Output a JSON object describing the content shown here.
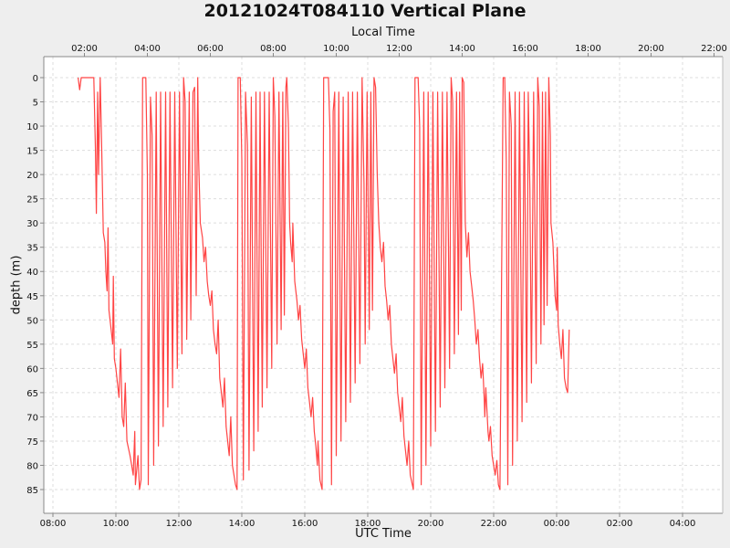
{
  "chart_data": {
    "type": "line",
    "title": "20121024T084110 Vertical Plane",
    "xlabel": "UTC Time",
    "x2label": "Local Time",
    "ylabel": "depth (m)",
    "y_inverted": true,
    "ylim": [
      -4,
      90
    ],
    "grid": true,
    "legend": null,
    "x_ticks_utc": [
      "08:00",
      "10:00",
      "12:00",
      "14:00",
      "16:00",
      "18:00",
      "20:00",
      "22:00",
      "00:00",
      "02:00",
      "04:00"
    ],
    "x_ticks_local": [
      "02:00",
      "04:00",
      "06:00",
      "08:00",
      "10:00",
      "12:00",
      "14:00",
      "16:00",
      "18:00",
      "20:00",
      "22:00"
    ],
    "y_ticks": [
      0,
      5,
      10,
      15,
      20,
      25,
      30,
      35,
      40,
      45,
      50,
      55,
      60,
      65,
      70,
      75,
      80,
      85
    ],
    "x_units": "hours since 08:00 UTC",
    "series": [
      {
        "name": "depth",
        "color": "#ff4444",
        "points": [
          [
            0.8,
            0
          ],
          [
            0.85,
            2.5
          ],
          [
            0.9,
            0
          ],
          [
            1.3,
            0
          ],
          [
            1.35,
            15
          ],
          [
            1.38,
            28
          ],
          [
            1.42,
            3
          ],
          [
            1.45,
            20
          ],
          [
            1.5,
            0
          ],
          [
            1.55,
            15
          ],
          [
            1.6,
            32
          ],
          [
            1.65,
            34
          ],
          [
            1.68,
            40
          ],
          [
            1.72,
            44
          ],
          [
            1.75,
            31
          ],
          [
            1.78,
            48
          ],
          [
            1.85,
            52
          ],
          [
            1.9,
            55
          ],
          [
            1.92,
            41
          ],
          [
            1.95,
            58
          ],
          [
            2.0,
            60
          ],
          [
            2.05,
            63
          ],
          [
            2.1,
            66
          ],
          [
            2.15,
            56
          ],
          [
            2.2,
            70
          ],
          [
            2.25,
            72
          ],
          [
            2.3,
            63
          ],
          [
            2.35,
            75
          ],
          [
            2.45,
            78
          ],
          [
            2.5,
            80
          ],
          [
            2.55,
            82
          ],
          [
            2.6,
            73
          ],
          [
            2.62,
            84
          ],
          [
            2.7,
            78
          ],
          [
            2.75,
            85
          ],
          [
            2.8,
            83
          ],
          [
            2.85,
            0
          ],
          [
            2.95,
            0
          ],
          [
            3.0,
            20
          ],
          [
            3.03,
            84
          ],
          [
            3.1,
            4
          ],
          [
            3.15,
            12
          ],
          [
            3.2,
            80
          ],
          [
            3.28,
            3
          ],
          [
            3.35,
            76
          ],
          [
            3.42,
            3
          ],
          [
            3.5,
            72
          ],
          [
            3.58,
            3
          ],
          [
            3.65,
            68
          ],
          [
            3.72,
            3
          ],
          [
            3.8,
            64
          ],
          [
            3.87,
            3
          ],
          [
            3.95,
            60
          ],
          [
            4.02,
            3
          ],
          [
            4.1,
            57
          ],
          [
            4.15,
            0
          ],
          [
            4.2,
            5
          ],
          [
            4.25,
            54
          ],
          [
            4.33,
            3
          ],
          [
            4.38,
            50
          ],
          [
            4.45,
            3
          ],
          [
            4.5,
            2
          ],
          [
            4.55,
            45
          ],
          [
            4.6,
            0
          ],
          [
            4.63,
            17
          ],
          [
            4.68,
            30
          ],
          [
            4.75,
            33
          ],
          [
            4.8,
            38
          ],
          [
            4.85,
            35
          ],
          [
            4.9,
            42
          ],
          [
            4.95,
            45
          ],
          [
            5.0,
            47
          ],
          [
            5.05,
            44
          ],
          [
            5.1,
            52
          ],
          [
            5.15,
            55
          ],
          [
            5.2,
            57
          ],
          [
            5.25,
            50
          ],
          [
            5.3,
            62
          ],
          [
            5.35,
            65
          ],
          [
            5.4,
            68
          ],
          [
            5.45,
            62
          ],
          [
            5.5,
            72
          ],
          [
            5.55,
            75
          ],
          [
            5.6,
            78
          ],
          [
            5.65,
            70
          ],
          [
            5.7,
            80
          ],
          [
            5.75,
            82
          ],
          [
            5.8,
            84
          ],
          [
            5.85,
            85
          ],
          [
            5.88,
            0
          ],
          [
            5.95,
            0
          ],
          [
            6.0,
            17
          ],
          [
            6.05,
            83
          ],
          [
            6.12,
            3
          ],
          [
            6.18,
            14
          ],
          [
            6.23,
            81
          ],
          [
            6.3,
            4
          ],
          [
            6.38,
            77
          ],
          [
            6.45,
            3
          ],
          [
            6.52,
            73
          ],
          [
            6.58,
            3
          ],
          [
            6.65,
            68
          ],
          [
            6.72,
            3
          ],
          [
            6.8,
            64
          ],
          [
            6.87,
            3
          ],
          [
            6.95,
            60
          ],
          [
            7.0,
            0
          ],
          [
            7.05,
            8
          ],
          [
            7.12,
            55
          ],
          [
            7.18,
            3
          ],
          [
            7.25,
            52
          ],
          [
            7.3,
            3
          ],
          [
            7.35,
            49
          ],
          [
            7.4,
            2
          ],
          [
            7.43,
            0
          ],
          [
            7.48,
            10
          ],
          [
            7.52,
            30
          ],
          [
            7.55,
            34
          ],
          [
            7.6,
            38
          ],
          [
            7.62,
            30
          ],
          [
            7.68,
            42
          ],
          [
            7.75,
            46
          ],
          [
            7.8,
            50
          ],
          [
            7.85,
            47
          ],
          [
            7.9,
            54
          ],
          [
            7.95,
            57
          ],
          [
            8.0,
            60
          ],
          [
            8.05,
            56
          ],
          [
            8.1,
            64
          ],
          [
            8.15,
            67
          ],
          [
            8.2,
            70
          ],
          [
            8.25,
            66
          ],
          [
            8.3,
            73
          ],
          [
            8.35,
            76
          ],
          [
            8.4,
            80
          ],
          [
            8.42,
            75
          ],
          [
            8.48,
            83
          ],
          [
            8.55,
            85
          ],
          [
            8.6,
            0
          ],
          [
            8.75,
            0
          ],
          [
            8.8,
            11
          ],
          [
            8.85,
            84
          ],
          [
            8.9,
            7
          ],
          [
            8.95,
            3
          ],
          [
            9.0,
            78
          ],
          [
            9.08,
            3
          ],
          [
            9.15,
            75
          ],
          [
            9.22,
            4
          ],
          [
            9.3,
            71
          ],
          [
            9.38,
            3
          ],
          [
            9.45,
            67
          ],
          [
            9.52,
            3
          ],
          [
            9.6,
            63
          ],
          [
            9.67,
            3
          ],
          [
            9.75,
            59
          ],
          [
            9.82,
            0
          ],
          [
            9.88,
            22
          ],
          [
            9.92,
            55
          ],
          [
            9.98,
            3
          ],
          [
            10.05,
            52
          ],
          [
            10.1,
            3
          ],
          [
            10.15,
            48
          ],
          [
            10.2,
            0
          ],
          [
            10.25,
            2
          ],
          [
            10.3,
            20
          ],
          [
            10.35,
            30
          ],
          [
            10.4,
            35
          ],
          [
            10.45,
            38
          ],
          [
            10.5,
            34
          ],
          [
            10.55,
            43
          ],
          [
            10.6,
            46
          ],
          [
            10.65,
            50
          ],
          [
            10.7,
            47
          ],
          [
            10.75,
            55
          ],
          [
            10.8,
            58
          ],
          [
            10.85,
            61
          ],
          [
            10.9,
            57
          ],
          [
            10.95,
            65
          ],
          [
            11.0,
            68
          ],
          [
            11.05,
            71
          ],
          [
            11.1,
            66
          ],
          [
            11.15,
            74
          ],
          [
            11.2,
            77
          ],
          [
            11.25,
            80
          ],
          [
            11.3,
            75
          ],
          [
            11.35,
            82
          ],
          [
            11.45,
            85
          ],
          [
            11.5,
            0
          ],
          [
            11.6,
            0
          ],
          [
            11.65,
            10
          ],
          [
            11.7,
            84
          ],
          [
            11.78,
            3
          ],
          [
            11.85,
            80
          ],
          [
            11.92,
            3
          ],
          [
            12.0,
            76
          ],
          [
            12.07,
            3
          ],
          [
            12.15,
            73
          ],
          [
            12.22,
            3
          ],
          [
            12.3,
            68
          ],
          [
            12.37,
            3
          ],
          [
            12.45,
            64
          ],
          [
            12.52,
            3
          ],
          [
            12.6,
            60
          ],
          [
            12.65,
            0
          ],
          [
            12.7,
            5
          ],
          [
            12.75,
            57
          ],
          [
            12.82,
            3
          ],
          [
            12.88,
            53
          ],
          [
            12.92,
            3
          ],
          [
            12.97,
            48
          ],
          [
            13.0,
            0
          ],
          [
            13.05,
            1
          ],
          [
            13.1,
            30
          ],
          [
            13.15,
            37
          ],
          [
            13.2,
            32
          ],
          [
            13.25,
            40
          ],
          [
            13.3,
            43
          ],
          [
            13.35,
            46
          ],
          [
            13.4,
            50
          ],
          [
            13.45,
            55
          ],
          [
            13.5,
            52
          ],
          [
            13.55,
            58
          ],
          [
            13.6,
            62
          ],
          [
            13.65,
            59
          ],
          [
            13.7,
            66
          ],
          [
            13.72,
            70
          ],
          [
            13.75,
            64
          ],
          [
            13.82,
            73
          ],
          [
            13.85,
            75
          ],
          [
            13.9,
            72
          ],
          [
            13.95,
            78
          ],
          [
            14.0,
            80
          ],
          [
            14.05,
            82
          ],
          [
            14.1,
            79
          ],
          [
            14.15,
            84
          ],
          [
            14.2,
            85
          ],
          [
            14.3,
            0
          ],
          [
            14.35,
            0
          ],
          [
            14.4,
            17
          ],
          [
            14.45,
            84
          ],
          [
            14.5,
            3
          ],
          [
            14.56,
            10
          ],
          [
            14.6,
            80
          ],
          [
            14.68,
            3
          ],
          [
            14.75,
            75
          ],
          [
            14.82,
            3
          ],
          [
            14.9,
            71
          ],
          [
            14.97,
            3
          ],
          [
            15.05,
            67
          ],
          [
            15.1,
            3
          ],
          [
            15.15,
            23
          ],
          [
            15.2,
            63
          ],
          [
            15.27,
            3
          ],
          [
            15.35,
            59
          ],
          [
            15.4,
            0
          ],
          [
            15.45,
            6
          ],
          [
            15.5,
            55
          ],
          [
            15.55,
            3
          ],
          [
            15.6,
            51
          ],
          [
            15.65,
            3
          ],
          [
            15.7,
            47
          ],
          [
            15.75,
            0
          ],
          [
            15.8,
            12
          ],
          [
            15.82,
            30
          ],
          [
            15.88,
            34
          ],
          [
            15.92,
            40
          ],
          [
            15.95,
            45
          ],
          [
            16.0,
            48
          ],
          [
            16.02,
            35
          ],
          [
            16.05,
            51
          ],
          [
            16.1,
            55
          ],
          [
            16.15,
            58
          ],
          [
            16.2,
            52
          ],
          [
            16.25,
            62
          ],
          [
            16.3,
            64
          ],
          [
            16.35,
            65
          ],
          [
            16.4,
            52
          ]
        ]
      }
    ]
  }
}
